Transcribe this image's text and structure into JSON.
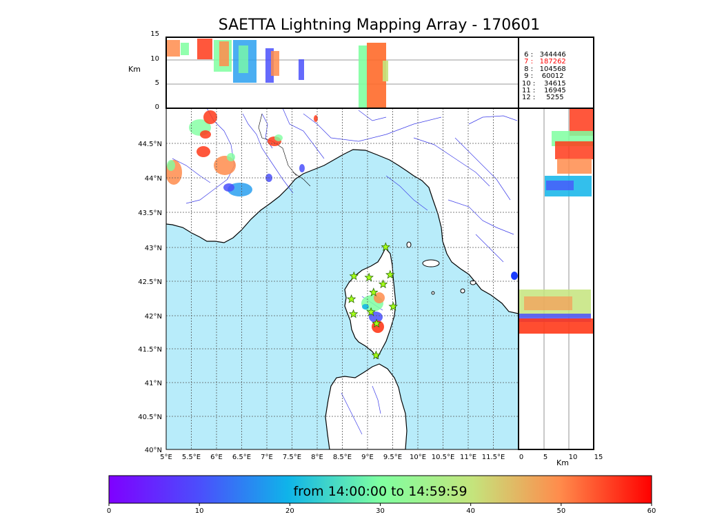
{
  "title": "SAETTA Lightning Mapping Array - 170601",
  "time_range_label": "from 14:00:00 to 14:59:59",
  "altitude_panel": {
    "unit_label": "Km",
    "ticks": [
      "15",
      "10",
      "5",
      "0"
    ]
  },
  "side_panel": {
    "unit_label": "Km",
    "ticks": [
      "0",
      "5",
      "10",
      "15"
    ]
  },
  "station_counts": [
    {
      "stations": "6",
      "count": "344446",
      "highlight": false
    },
    {
      "stations": "7",
      "count": "187262",
      "highlight": true
    },
    {
      "stations": "8",
      "count": "104568",
      "highlight": false
    },
    {
      "stations": "9",
      "count": "60012",
      "highlight": false
    },
    {
      "stations": "10",
      "count": "34615",
      "highlight": false
    },
    {
      "stations": "11",
      "count": "16945",
      "highlight": false
    },
    {
      "stations": "12",
      "count": "5255",
      "highlight": false
    }
  ],
  "map": {
    "lon_ticks": [
      "5°E",
      "5.5°E",
      "6°E",
      "6.5°E",
      "7°E",
      "7.5°E",
      "8°E",
      "8.5°E",
      "9°E",
      "9.5°E",
      "10°E",
      "10.5°E",
      "11°E",
      "11.5°E"
    ],
    "lat_ticks": [
      "44.5°N",
      "44°N",
      "43.5°N",
      "43°N",
      "42.5°N",
      "42°N",
      "41.5°N",
      "41°N",
      "40.5°N",
      "40°N"
    ],
    "sea_color": "#b8ecfa",
    "land_color": "#ffffff",
    "river_color": "#3a3ae8",
    "station_color": "#a6ff1a"
  },
  "colorbar": {
    "ticks": [
      "0",
      "10",
      "20",
      "30",
      "40",
      "50",
      "60"
    ],
    "colormap": "rainbow",
    "range": [
      0,
      60
    ]
  },
  "station_markers": [
    {
      "lon": 9.36,
      "lat": 42.99
    },
    {
      "lon": 8.73,
      "lat": 42.56
    },
    {
      "lon": 9.03,
      "lat": 42.54
    },
    {
      "lon": 9.45,
      "lat": 42.58
    },
    {
      "lon": 9.31,
      "lat": 42.44
    },
    {
      "lon": 9.12,
      "lat": 42.32
    },
    {
      "lon": 8.68,
      "lat": 42.22
    },
    {
      "lon": 9.51,
      "lat": 42.11
    },
    {
      "lon": 9.07,
      "lat": 42.03
    },
    {
      "lon": 8.72,
      "lat": 42.0
    },
    {
      "lon": 9.18,
      "lat": 41.86
    },
    {
      "lon": 9.17,
      "lat": 41.39
    }
  ]
}
